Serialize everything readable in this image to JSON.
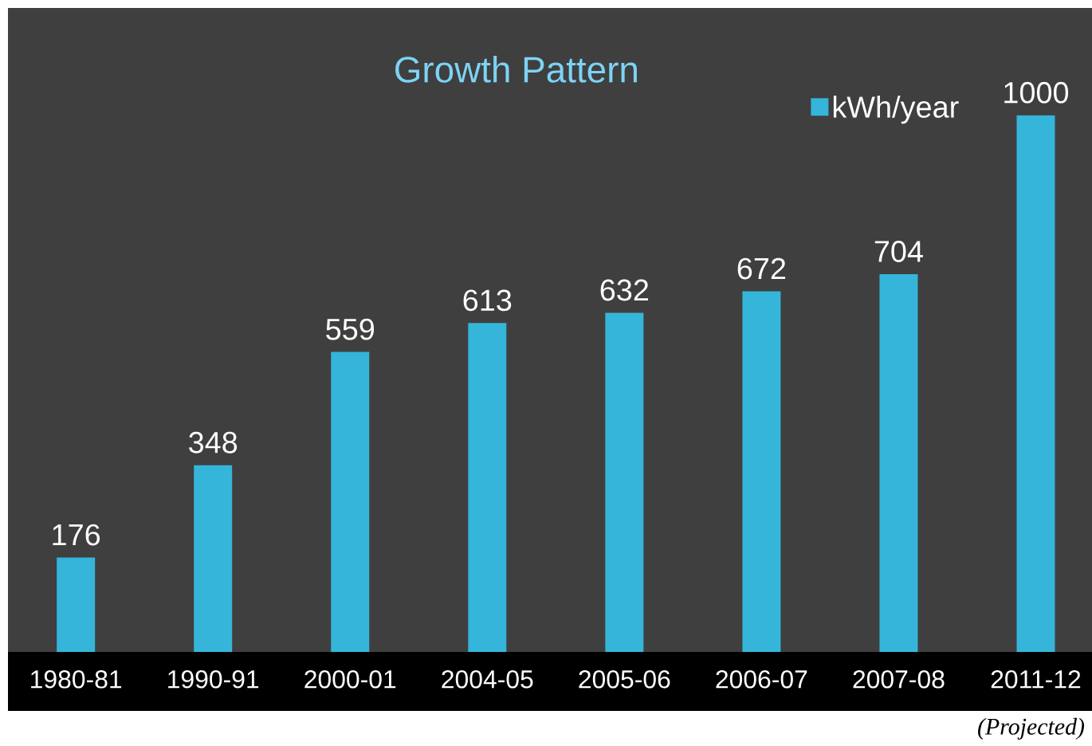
{
  "chart_data": {
    "type": "bar",
    "title": "Growth Pattern",
    "categories": [
      "1980-81",
      "1990-91",
      "2000-01",
      "2004-05",
      "2005-06",
      "2006-07",
      "2007-08",
      "2011-12"
    ],
    "series": [
      {
        "name": "kWh/year",
        "color": "#35b5da",
        "values": [
          176,
          348,
          559,
          613,
          632,
          672,
          704,
          1000
        ]
      }
    ],
    "data_labels": true,
    "legend": "top right",
    "annotations": [
      "(Projected)"
    ]
  }
}
